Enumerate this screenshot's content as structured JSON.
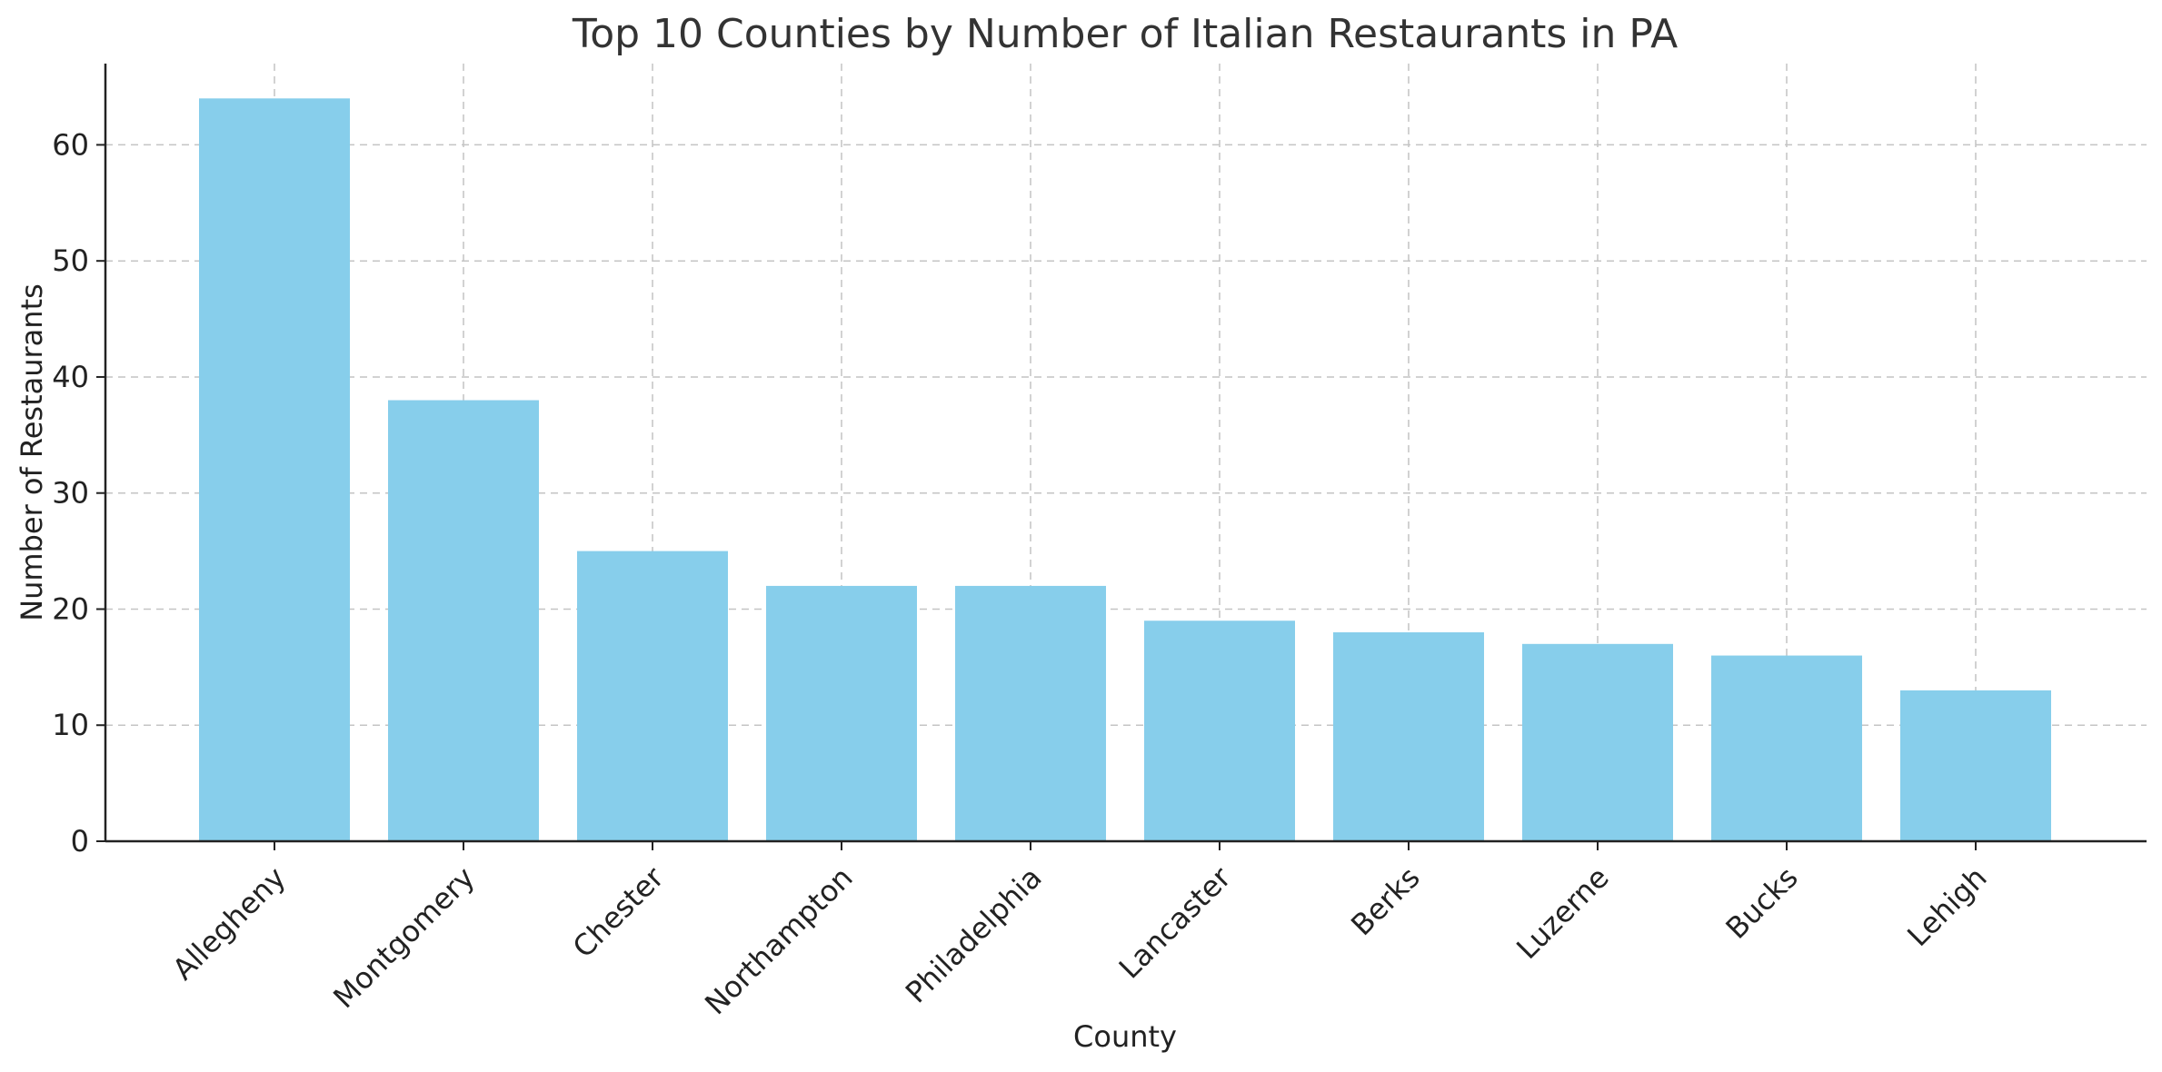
{
  "chart_data": {
    "type": "bar",
    "title": "Top 10 Counties by Number of Italian Restaurants in PA",
    "xlabel": "County",
    "ylabel": "Number of Restaurants",
    "categories": [
      "Allegheny",
      "Montgomery",
      "Chester",
      "Northampton",
      "Philadelphia",
      "Lancaster",
      "Berks",
      "Luzerne",
      "Bucks",
      "Lehigh"
    ],
    "values": [
      64,
      38,
      25,
      22,
      22,
      19,
      18,
      17,
      16,
      13
    ],
    "ylim": [
      0,
      67
    ],
    "yticks": [
      "0",
      "10",
      "20",
      "30",
      "40",
      "50",
      "60"
    ],
    "grid": true,
    "bar_color": "#87CEEB"
  }
}
